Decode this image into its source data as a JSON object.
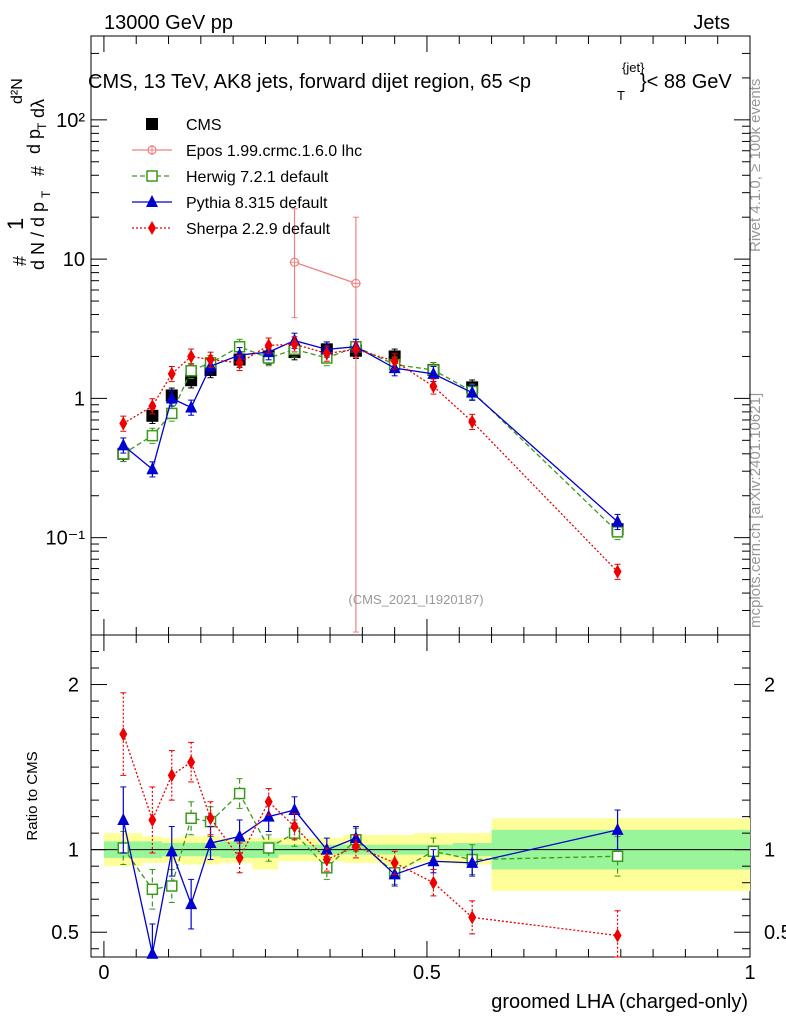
{
  "header": {
    "left": "13000 GeV pp",
    "right": "Jets"
  },
  "title": "CMS, 13 TeV, AK8 jets, forward dijet region, 65 <p",
  "title_sup": "{jet}",
  "title_sub": "T",
  "title_end": "}< 88 GeV",
  "side_labels": {
    "top": "Rivet 4.1.0, ≥ 100k events",
    "bottom": "mcplots.cern.ch [arXiv:2401.10621]"
  },
  "analysis_id": "(CMS_2021_I1920187)",
  "chart_data": [
    {
      "type": "line",
      "panel": "main",
      "ylabel_parts": [
        "#",
        "1",
        "d N / d p",
        "T",
        "#",
        "d p",
        "T",
        "dλ",
        "d²N"
      ],
      "yscale": "log",
      "ylim": [
        0.02,
        400
      ],
      "xlim": [
        -0.02,
        1.0
      ],
      "yticks": [
        {
          "value": 0.1,
          "label": "10⁻¹"
        },
        {
          "value": 1,
          "label": "1"
        },
        {
          "value": 10,
          "label": "10"
        },
        {
          "value": 100,
          "label": "10²"
        }
      ],
      "series": [
        {
          "name": "CMS",
          "color": "#000000",
          "marker": "square-filled",
          "line": "none",
          "x": [
            0.03,
            0.075,
            0.105,
            0.135,
            0.165,
            0.21,
            0.255,
            0.295,
            0.345,
            0.39,
            0.45,
            0.51,
            0.57,
            0.795
          ],
          "y": [
            0.4,
            0.75,
            1.05,
            1.35,
            1.6,
            1.9,
            2.0,
            2.15,
            2.25,
            2.2,
            2.0,
            1.6,
            1.2,
            0.115
          ]
        },
        {
          "name": "Epos 1.99.crmc.1.6.0 lhc",
          "color": "#f08080",
          "marker": "cross-open",
          "line": "solid",
          "x": [
            0.295,
            0.39
          ],
          "y": [
            9.5,
            6.7
          ],
          "err_up": [
            23,
            20
          ],
          "err_down": [
            3.8,
            0.021
          ]
        },
        {
          "name": "Herwig 7.2.1 default",
          "color": "#3a9a1a",
          "marker": "square-open",
          "line": "dashed",
          "x": [
            0.03,
            0.075,
            0.105,
            0.135,
            0.165,
            0.21,
            0.255,
            0.295,
            0.345,
            0.39,
            0.45,
            0.51,
            0.57,
            0.795
          ],
          "y": [
            0.4,
            0.54,
            0.78,
            1.58,
            1.8,
            2.35,
            1.95,
            2.25,
            1.95,
            2.35,
            1.75,
            1.6,
            1.12,
            0.11
          ]
        },
        {
          "name": "Pythia 8.315 default",
          "color": "#0000d0",
          "marker": "triangle-filled",
          "line": "solid",
          "x": [
            0.03,
            0.075,
            0.105,
            0.135,
            0.165,
            0.21,
            0.255,
            0.295,
            0.345,
            0.39,
            0.45,
            0.51,
            0.57,
            0.795
          ],
          "y": [
            0.46,
            0.31,
            1.0,
            0.86,
            1.7,
            2.05,
            2.15,
            2.6,
            2.25,
            2.35,
            1.65,
            1.5,
            1.1,
            0.13
          ]
        },
        {
          "name": "Sherpa 2.2.9 default",
          "color": "#ee0000",
          "marker": "diamond-filled",
          "line": "dotted",
          "x": [
            0.03,
            0.075,
            0.105,
            0.135,
            0.165,
            0.21,
            0.255,
            0.295,
            0.345,
            0.39,
            0.45,
            0.51,
            0.57,
            0.795
          ],
          "y": [
            0.66,
            0.88,
            1.5,
            2.0,
            1.9,
            1.8,
            2.4,
            2.45,
            2.1,
            2.25,
            1.85,
            1.22,
            0.68,
            0.057
          ]
        }
      ],
      "legend_placement": "top-left"
    },
    {
      "type": "line",
      "panel": "ratio",
      "ylabel": "Ratio to CMS",
      "ylim": [
        0.35,
        2.3
      ],
      "xlim": [
        -0.02,
        1.0
      ],
      "xlabel": "groomed LHA (charged-only)",
      "xticks": [
        {
          "value": 0,
          "label": "0"
        },
        {
          "value": 0.5,
          "label": "0.5"
        },
        {
          "value": 1,
          "label": "1"
        }
      ],
      "yticks": [
        {
          "value": 0.5,
          "label": "0.5"
        },
        {
          "value": 1,
          "label": "1"
        },
        {
          "value": 2,
          "label": "2"
        }
      ],
      "bands": {
        "edges": [
          0.0,
          0.06,
          0.09,
          0.12,
          0.15,
          0.18,
          0.23,
          0.27,
          0.32,
          0.37,
          0.43,
          0.48,
          0.54,
          0.6,
          1.0
        ],
        "stat_lo": [
          0.95,
          0.95,
          0.96,
          0.96,
          0.96,
          0.95,
          0.95,
          0.97,
          0.97,
          0.97,
          0.97,
          0.97,
          0.96,
          0.88
        ],
        "stat_hi": [
          1.05,
          1.05,
          1.04,
          1.04,
          1.04,
          1.05,
          1.05,
          1.03,
          1.03,
          1.03,
          1.03,
          1.03,
          1.04,
          1.12
        ],
        "total_lo": [
          0.9,
          0.92,
          0.92,
          0.91,
          0.91,
          0.92,
          0.88,
          0.93,
          0.93,
          0.92,
          0.9,
          0.92,
          0.91,
          0.75
        ],
        "total_hi": [
          1.1,
          1.08,
          1.07,
          1.08,
          1.08,
          1.07,
          1.07,
          1.07,
          1.07,
          1.09,
          1.09,
          1.1,
          1.1,
          1.19
        ]
      },
      "series": [
        {
          "name": "Herwig 7.2.1 default",
          "color": "#3a9a1a",
          "marker": "square-open",
          "line": "dashed",
          "x": [
            0.03,
            0.075,
            0.105,
            0.135,
            0.165,
            0.21,
            0.255,
            0.295,
            0.345,
            0.39,
            0.45,
            0.51,
            0.57,
            0.795
          ],
          "y": [
            1.01,
            0.76,
            0.78,
            1.19,
            1.17,
            1.34,
            1.01,
            1.1,
            0.89,
            1.06,
            0.86,
            0.99,
            0.94,
            0.96
          ],
          "err": [
            0.1,
            0.12,
            0.1,
            0.1,
            0.09,
            0.09,
            0.08,
            0.08,
            0.07,
            0.07,
            0.07,
            0.08,
            0.09,
            0.12
          ]
        },
        {
          "name": "Pythia 8.315 default",
          "color": "#0000d0",
          "marker": "triangle-filled",
          "line": "solid",
          "x": [
            0.03,
            0.075,
            0.105,
            0.135,
            0.165,
            0.21,
            0.255,
            0.295,
            0.345,
            0.39,
            0.45,
            0.51,
            0.57,
            0.795
          ],
          "y": [
            1.18,
            0.37,
            0.99,
            0.67,
            1.04,
            1.08,
            1.2,
            1.24,
            1.0,
            1.07,
            0.85,
            0.93,
            0.92,
            1.12
          ],
          "err": [
            0.2,
            0.18,
            0.15,
            0.15,
            0.1,
            0.1,
            0.09,
            0.08,
            0.07,
            0.07,
            0.07,
            0.07,
            0.08,
            0.12
          ]
        },
        {
          "name": "Sherpa 2.2.9 default",
          "color": "#ee0000",
          "marker": "diamond-filled",
          "line": "dotted",
          "x": [
            0.03,
            0.075,
            0.105,
            0.135,
            0.165,
            0.21,
            0.255,
            0.295,
            0.345,
            0.39,
            0.45,
            0.51,
            0.57,
            0.795
          ],
          "y": [
            1.7,
            1.18,
            1.45,
            1.53,
            1.19,
            0.95,
            1.29,
            1.14,
            0.94,
            1.02,
            0.92,
            0.8,
            0.59,
            0.48
          ],
          "err": [
            0.25,
            0.2,
            0.15,
            0.12,
            0.1,
            0.09,
            0.08,
            0.08,
            0.07,
            0.07,
            0.07,
            0.08,
            0.1,
            0.15
          ]
        }
      ]
    }
  ]
}
